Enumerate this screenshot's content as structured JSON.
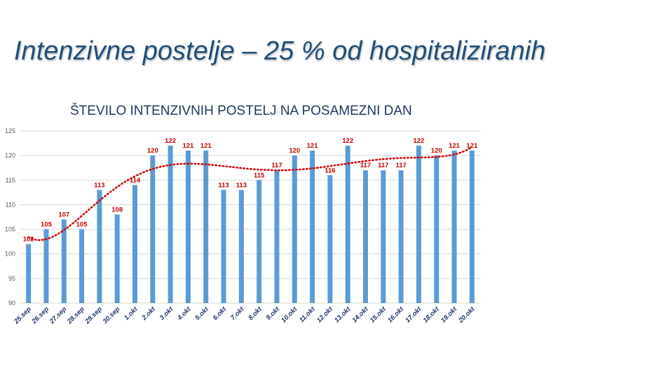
{
  "slide": {
    "title": "Intenzivne postelje – 25 % od hospitaliziranih"
  },
  "chart_data": {
    "type": "bar",
    "title": "ŠTEVILO INTENZIVNIH POSTELJ NA POSAMEZNI DAN",
    "categories": [
      "25.sep",
      "26.sep",
      "27.sep",
      "28.sep",
      "29.sep",
      "30.sep",
      "1.okt",
      "2.okt",
      "3.okt",
      "4.okt",
      "5.okt",
      "6.okt",
      "7.okt",
      "8.okt",
      "9.okt",
      "10.okt",
      "11.okt",
      "12.okt",
      "13.okt",
      "14.okt",
      "15.okt",
      "16.okt",
      "17.okt",
      "18.okt",
      "19.okt",
      "20.okt"
    ],
    "values": [
      102,
      105,
      107,
      105,
      113,
      108,
      114,
      120,
      122,
      121,
      121,
      113,
      113,
      115,
      117,
      120,
      121,
      116,
      122,
      117,
      117,
      117,
      122,
      120,
      121,
      121
    ],
    "ylim": [
      90,
      125
    ],
    "yticks": [
      90,
      95,
      100,
      105,
      110,
      115,
      120,
      125
    ],
    "grid": true,
    "trendline": "polynomial",
    "colors": {
      "bar": "#5b9bd5",
      "trend": "#d00000",
      "label": "#c00000",
      "grid": "#d9d9d9"
    }
  }
}
